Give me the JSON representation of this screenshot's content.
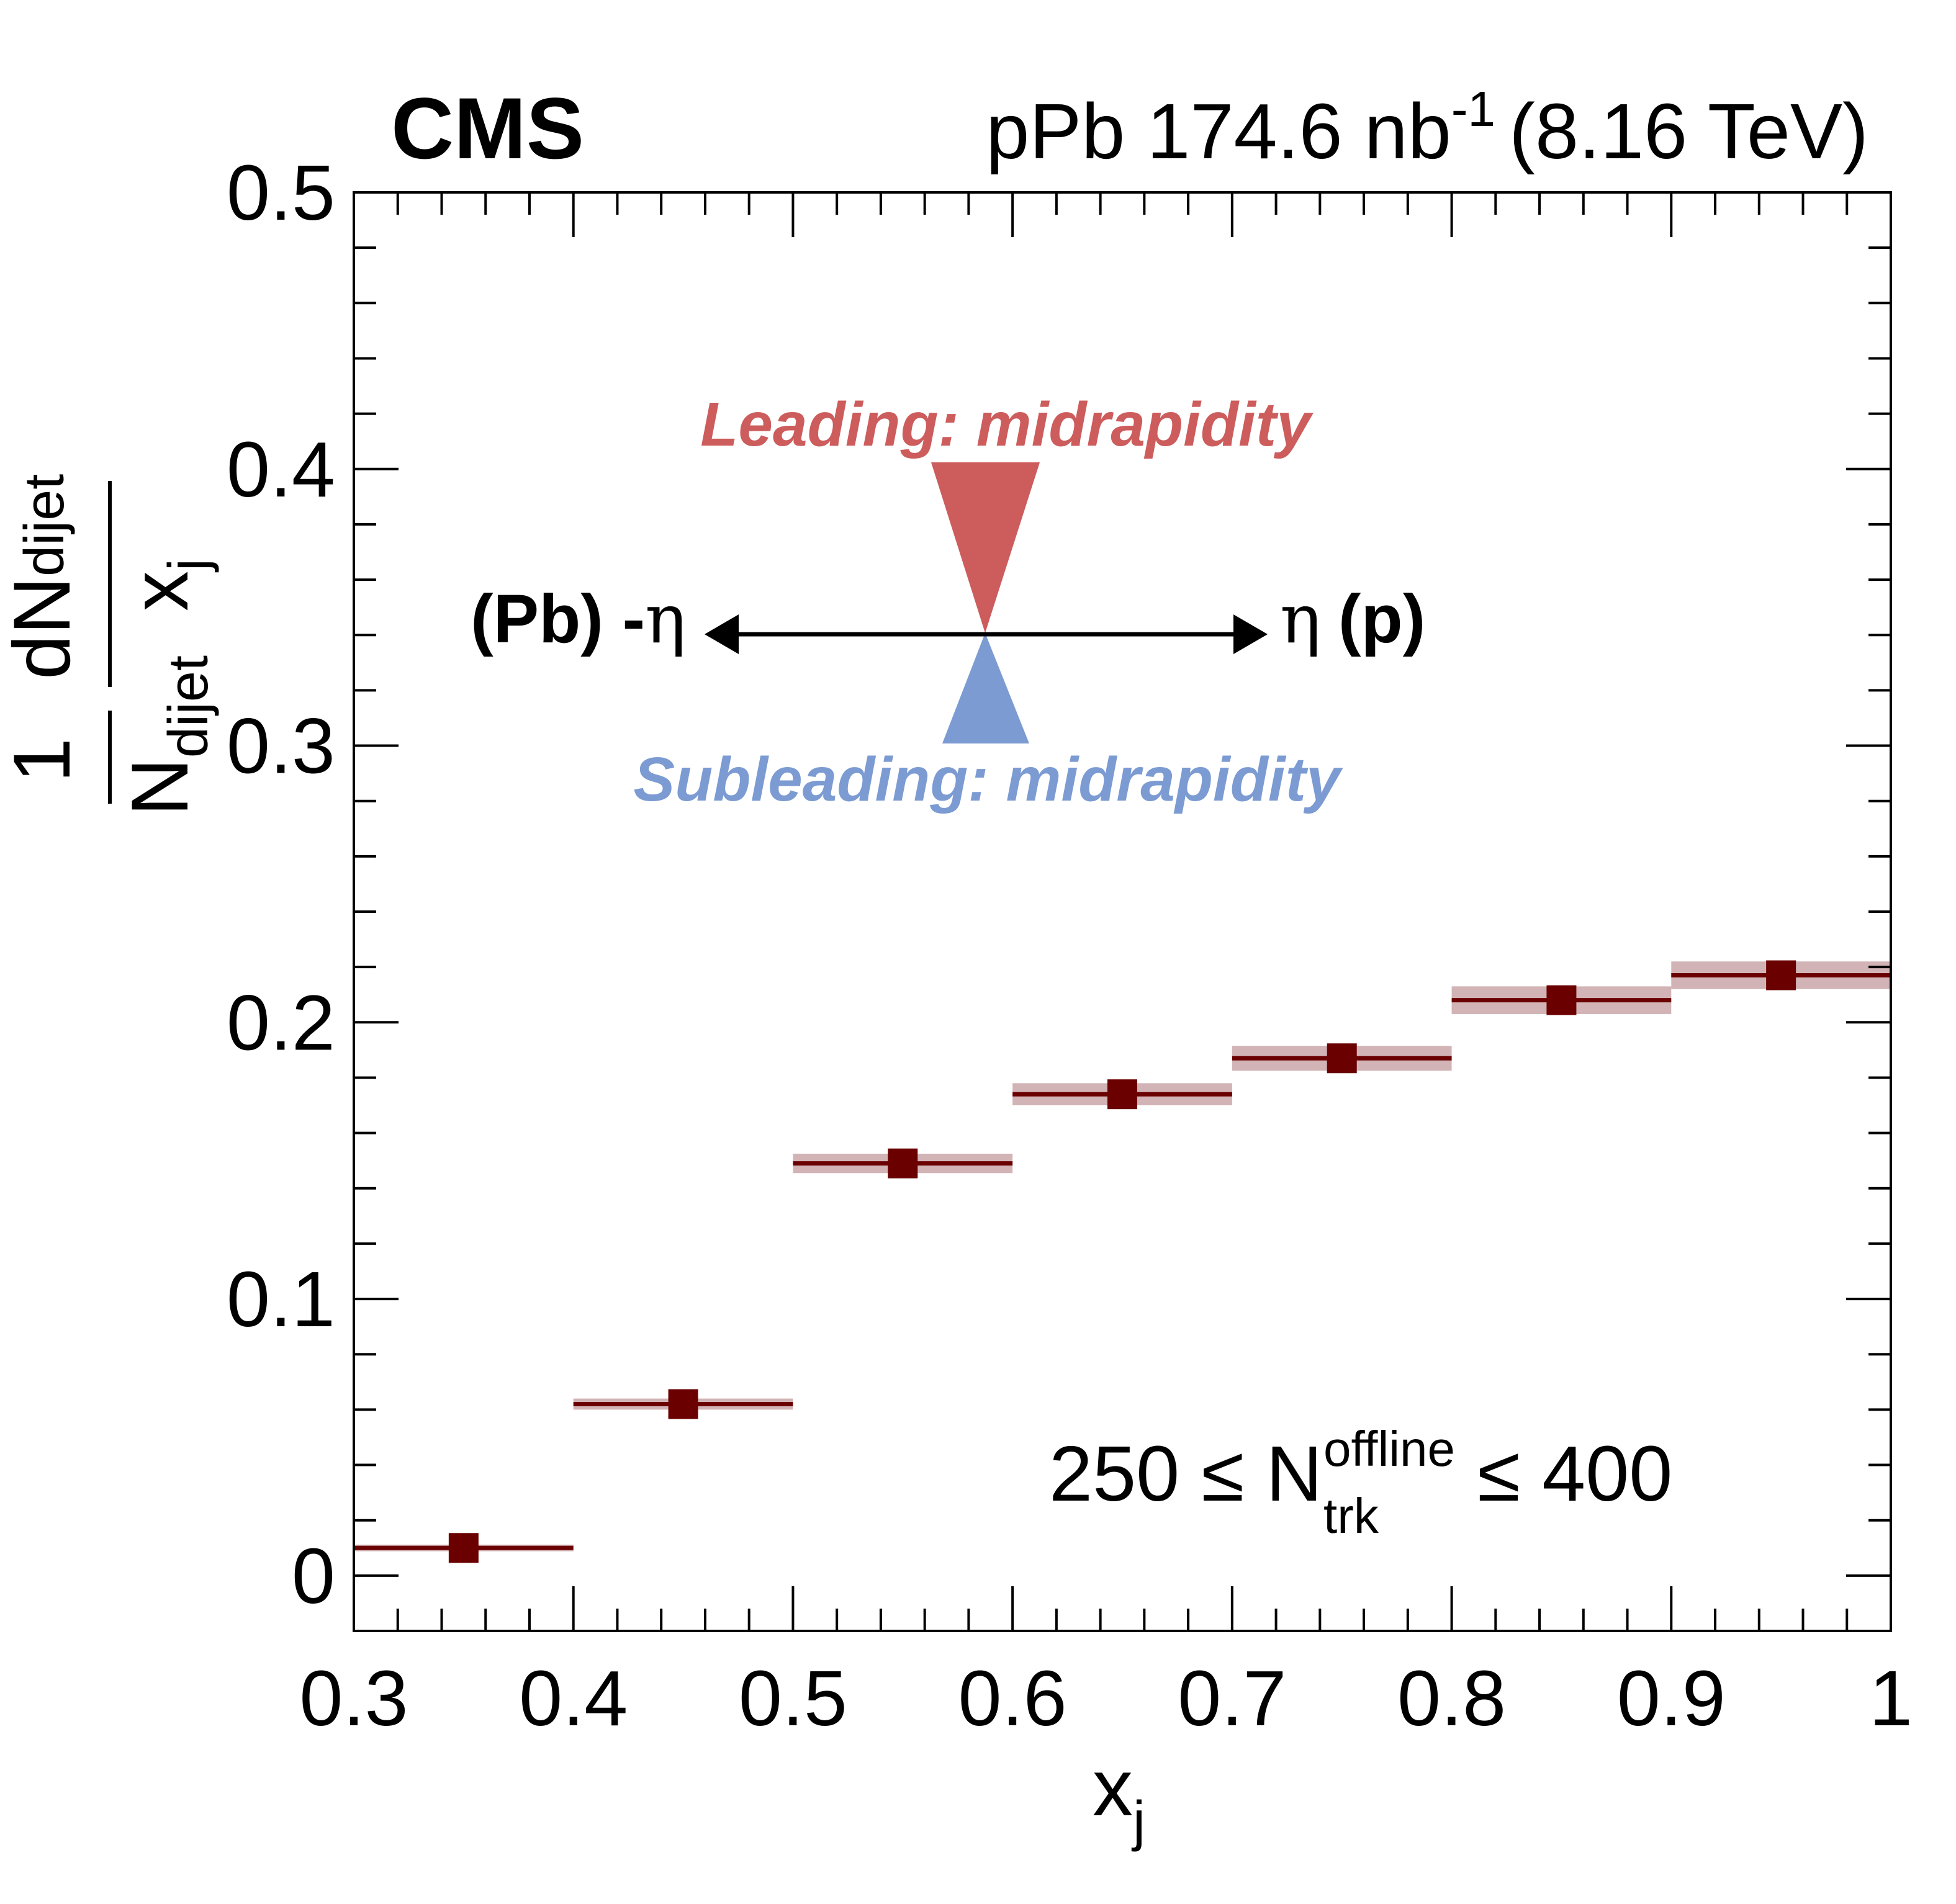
{
  "header": {
    "experiment": "CMS",
    "dataset": "pPb 174.6 nb",
    "lumi_exp": "-1",
    "energy": "(8.16 TeV)"
  },
  "annotations": {
    "leading": "Leading: midrapidity",
    "subleading": "Subleading: midrapidity",
    "pb_side": "(Pb) -",
    "p_side_bold": "(p)",
    "eta": "η",
    "mult_low": "250 ≤ N",
    "mult_sub": "trk",
    "mult_sup": "offline",
    "mult_high": "≤ 400"
  },
  "colors": {
    "data": "#6b0000",
    "syst_band": "#d2b4b6",
    "leading": "#cd5c5c",
    "subleading": "#7b9bd2",
    "axis": "#000000"
  },
  "chart_data": {
    "type": "scatter",
    "xlim": [
      0.3,
      1.0
    ],
    "ylim": [
      -0.02,
      0.5
    ],
    "x_ticks": [
      0.3,
      0.4,
      0.5,
      0.6,
      0.7,
      0.8,
      0.9,
      1.0
    ],
    "x_tick_labels": [
      "0.3",
      "0.4",
      "0.5",
      "0.6",
      "0.7",
      "0.8",
      "0.9",
      "1"
    ],
    "y_ticks": [
      0,
      0.1,
      0.2,
      0.3,
      0.4,
      0.5
    ],
    "y_tick_labels": [
      "0",
      "0.1",
      "0.2",
      "0.3",
      "0.4",
      "0.5"
    ],
    "xlabel": "x",
    "xlabel_sub": "j",
    "ylabel_pre": "1",
    "ylabel_pre_den": "N",
    "ylabel_pre_den_sub": "dijet",
    "ylabel_num": "dN",
    "ylabel_num_sub": "dijet",
    "ylabel_den": "x",
    "ylabel_den_sub": "j",
    "grid": false,
    "series": [
      {
        "x": [
          0.35,
          0.45,
          0.55,
          0.65,
          0.75,
          0.85,
          0.95
        ],
        "x_low": [
          0.3,
          0.4,
          0.5,
          0.6,
          0.7,
          0.8,
          0.9
        ],
        "x_high": [
          0.4,
          0.5,
          0.6,
          0.7,
          0.8,
          0.9,
          1.0
        ],
        "y": [
          0.01,
          0.062,
          0.149,
          0.174,
          0.187,
          0.208,
          0.217
        ],
        "syst": [
          0.0012,
          0.002,
          0.0035,
          0.004,
          0.0045,
          0.005,
          0.005
        ]
      }
    ]
  }
}
